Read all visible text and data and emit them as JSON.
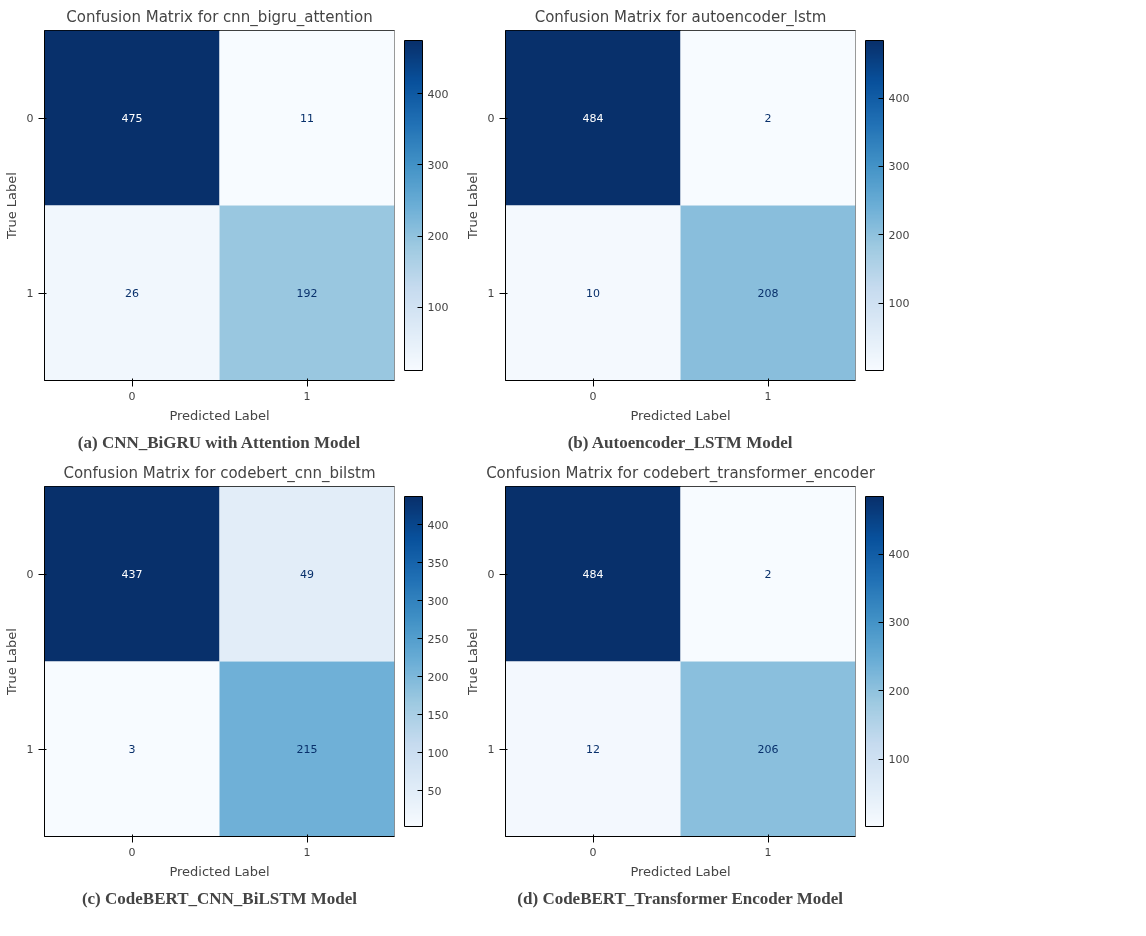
{
  "chart_data": [
    {
      "type": "heatmap",
      "title": "Confusion Matrix for cnn_bigru_attention",
      "xlabel": "Predicted Label",
      "ylabel": "True Label",
      "categories": [
        "0",
        "1"
      ],
      "y_categories": [
        "0",
        "1"
      ],
      "cells": [
        [
          475,
          11
        ],
        [
          26,
          192
        ]
      ],
      "clim": [
        11,
        475
      ],
      "cticks": [
        100,
        200,
        300,
        400
      ],
      "data_labels": true,
      "annotations": [
        "(a) CNN_BiGRU with Attention Model"
      ]
    },
    {
      "type": "heatmap",
      "title": "Confusion Matrix for autoencoder_lstm",
      "xlabel": "Predicted Label",
      "ylabel": "True Label",
      "categories": [
        "0",
        "1"
      ],
      "y_categories": [
        "0",
        "1"
      ],
      "cells": [
        [
          484,
          2
        ],
        [
          10,
          208
        ]
      ],
      "clim": [
        2,
        484
      ],
      "cticks": [
        100,
        200,
        300,
        400
      ],
      "data_labels": true,
      "annotations": [
        "(b) Autoencoder_LSTM Model"
      ]
    },
    {
      "type": "heatmap",
      "title": "Confusion Matrix for codebert_cnn_bilstm",
      "xlabel": "Predicted Label",
      "ylabel": "True Label",
      "categories": [
        "0",
        "1"
      ],
      "y_categories": [
        "0",
        "1"
      ],
      "cells": [
        [
          437,
          49
        ],
        [
          3,
          215
        ]
      ],
      "clim": [
        3,
        437
      ],
      "cticks": [
        50,
        100,
        150,
        200,
        250,
        300,
        350,
        400
      ],
      "data_labels": true,
      "annotations": [
        "(c) CodeBERT_CNN_BiLSTM Model"
      ]
    },
    {
      "type": "heatmap",
      "title": "Confusion Matrix for codebert_transformer_encoder",
      "xlabel": "Predicted Label",
      "ylabel": "True Label",
      "categories": [
        "0",
        "1"
      ],
      "y_categories": [
        "0",
        "1"
      ],
      "cells": [
        [
          484,
          2
        ],
        [
          12,
          206
        ]
      ],
      "clim": [
        2,
        484
      ],
      "cticks": [
        100,
        200,
        300,
        400
      ],
      "data_labels": true,
      "annotations": [
        "(d) CodeBERT_Transformer Encoder Model"
      ]
    }
  ]
}
